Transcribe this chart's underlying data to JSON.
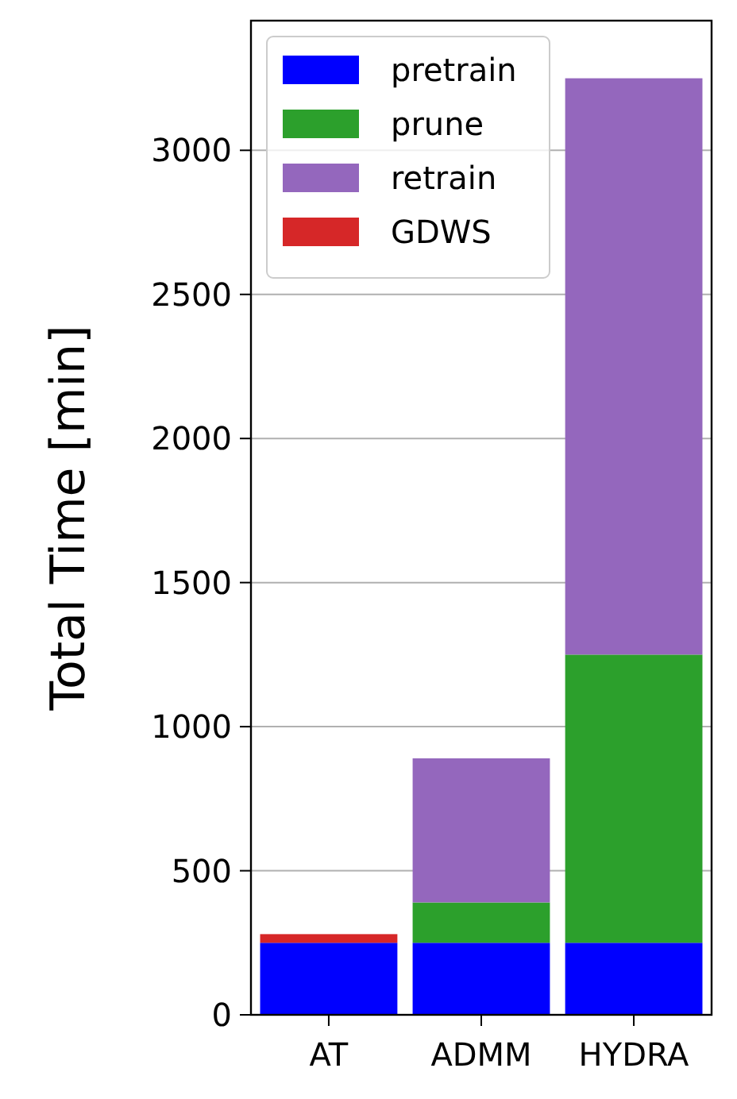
{
  "chart_data": {
    "type": "bar",
    "stacked": true,
    "ylabel": "Total Time [min]",
    "categories": [
      "AT",
      "ADMM",
      "HYDRA"
    ],
    "series": [
      {
        "name": "pretrain",
        "color": "#0000ff",
        "values": [
          250,
          250,
          250
        ]
      },
      {
        "name": "prune",
        "color": "#2ca02c",
        "values": [
          0,
          140,
          1000
        ]
      },
      {
        "name": "retrain",
        "color": "#9467bd",
        "values": [
          0,
          500,
          2000
        ]
      },
      {
        "name": "GDWS",
        "color": "#d62728",
        "values": [
          30,
          0,
          0
        ]
      }
    ],
    "ylim": [
      0,
      3450
    ],
    "yticks": [
      0,
      500,
      1000,
      1500,
      2000,
      2500,
      3000
    ],
    "grid": "y",
    "legend": "top left"
  }
}
